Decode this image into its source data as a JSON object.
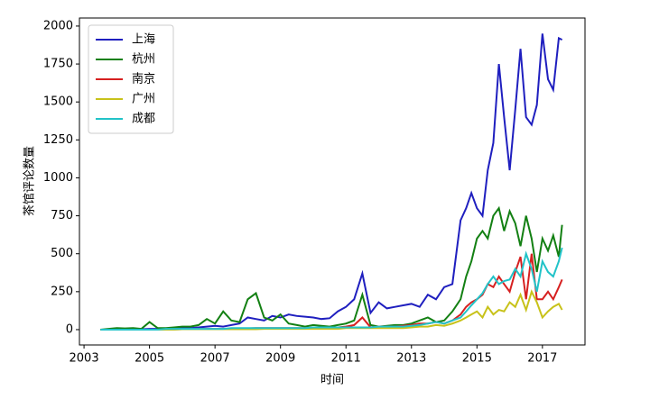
{
  "chart_data": {
    "type": "line",
    "xlabel": "时间",
    "ylabel": "茶馆评论数量",
    "xlim": [
      2002.86,
      2018.3
    ],
    "ylim": [
      -101,
      2053
    ],
    "xticks": [
      2003,
      2005,
      2007,
      2009,
      2011,
      2013,
      2015,
      2017
    ],
    "yticks": [
      0,
      250,
      500,
      750,
      1000,
      1250,
      1500,
      1750,
      2000
    ],
    "legend": "upper left",
    "x": [
      2003.5,
      2003.75,
      2004,
      2004.25,
      2004.5,
      2004.75,
      2005,
      2005.25,
      2005.5,
      2005.75,
      2006,
      2006.25,
      2006.5,
      2006.75,
      2007,
      2007.25,
      2007.5,
      2007.75,
      2008,
      2008.25,
      2008.5,
      2008.75,
      2009,
      2009.25,
      2009.5,
      2009.75,
      2010,
      2010.25,
      2010.5,
      2010.75,
      2011,
      2011.25,
      2011.5,
      2011.75,
      2012,
      2012.25,
      2012.5,
      2012.75,
      2013,
      2013.25,
      2013.5,
      2013.75,
      2014,
      2014.25,
      2014.5,
      2014.67,
      2014.83,
      2015,
      2015.17,
      2015.33,
      2015.5,
      2015.67,
      2015.83,
      2016,
      2016.17,
      2016.33,
      2016.5,
      2016.67,
      2016.83,
      2017,
      2017.17,
      2017.33,
      2017.5,
      2017.6
    ],
    "series": [
      {
        "name": "上海",
        "color": "#1f1fbf",
        "values": [
          0,
          0,
          0,
          0,
          2,
          3,
          5,
          5,
          8,
          10,
          12,
          10,
          15,
          20,
          25,
          20,
          30,
          40,
          80,
          70,
          60,
          90,
          80,
          100,
          90,
          85,
          80,
          70,
          75,
          120,
          150,
          200,
          370,
          110,
          180,
          140,
          150,
          160,
          170,
          150,
          230,
          200,
          280,
          300,
          720,
          800,
          900,
          800,
          750,
          1050,
          1230,
          1750,
          1400,
          1050,
          1450,
          1850,
          1400,
          1350,
          1480,
          1950,
          1650,
          1580,
          1920,
          1910
        ]
      },
      {
        "name": "杭州",
        "color": "#138013",
        "values": [
          0,
          5,
          10,
          8,
          10,
          5,
          50,
          10,
          10,
          15,
          20,
          20,
          30,
          70,
          40,
          120,
          60,
          50,
          200,
          240,
          80,
          60,
          100,
          40,
          30,
          20,
          30,
          25,
          20,
          30,
          40,
          60,
          230,
          30,
          20,
          25,
          30,
          30,
          40,
          60,
          80,
          50,
          60,
          120,
          200,
          350,
          450,
          600,
          650,
          600,
          750,
          800,
          650,
          780,
          700,
          550,
          750,
          600,
          380,
          600,
          520,
          620,
          480,
          690
        ]
      },
      {
        "name": "南京",
        "color": "#d62020",
        "values": [
          0,
          0,
          0,
          0,
          0,
          0,
          0,
          0,
          0,
          2,
          3,
          3,
          5,
          5,
          5,
          5,
          5,
          8,
          8,
          10,
          10,
          10,
          10,
          10,
          10,
          10,
          10,
          10,
          15,
          15,
          20,
          30,
          80,
          15,
          20,
          20,
          20,
          25,
          30,
          40,
          40,
          50,
          40,
          60,
          100,
          150,
          180,
          200,
          230,
          300,
          280,
          350,
          300,
          250,
          380,
          480,
          200,
          500,
          200,
          200,
          250,
          200,
          280,
          330
        ]
      },
      {
        "name": "广州",
        "color": "#c8c21a",
        "values": [
          0,
          0,
          0,
          0,
          0,
          0,
          0,
          0,
          0,
          0,
          3,
          3,
          3,
          3,
          3,
          3,
          3,
          3,
          3,
          3,
          5,
          5,
          5,
          5,
          5,
          5,
          5,
          5,
          5,
          5,
          10,
          10,
          10,
          10,
          10,
          10,
          10,
          10,
          15,
          20,
          20,
          30,
          25,
          40,
          60,
          80,
          100,
          120,
          80,
          150,
          100,
          130,
          120,
          180,
          150,
          230,
          130,
          250,
          180,
          80,
          120,
          150,
          170,
          130
        ]
      },
      {
        "name": "成都",
        "color": "#22c3c8",
        "values": [
          0,
          0,
          0,
          0,
          0,
          0,
          0,
          0,
          5,
          5,
          5,
          5,
          5,
          5,
          5,
          5,
          10,
          10,
          10,
          10,
          10,
          10,
          10,
          10,
          10,
          10,
          15,
          15,
          15,
          15,
          15,
          15,
          15,
          15,
          20,
          20,
          20,
          20,
          25,
          30,
          40,
          50,
          40,
          60,
          80,
          120,
          160,
          200,
          240,
          300,
          350,
          300,
          320,
          330,
          400,
          350,
          500,
          400,
          250,
          450,
          380,
          350,
          450,
          540
        ]
      }
    ]
  }
}
